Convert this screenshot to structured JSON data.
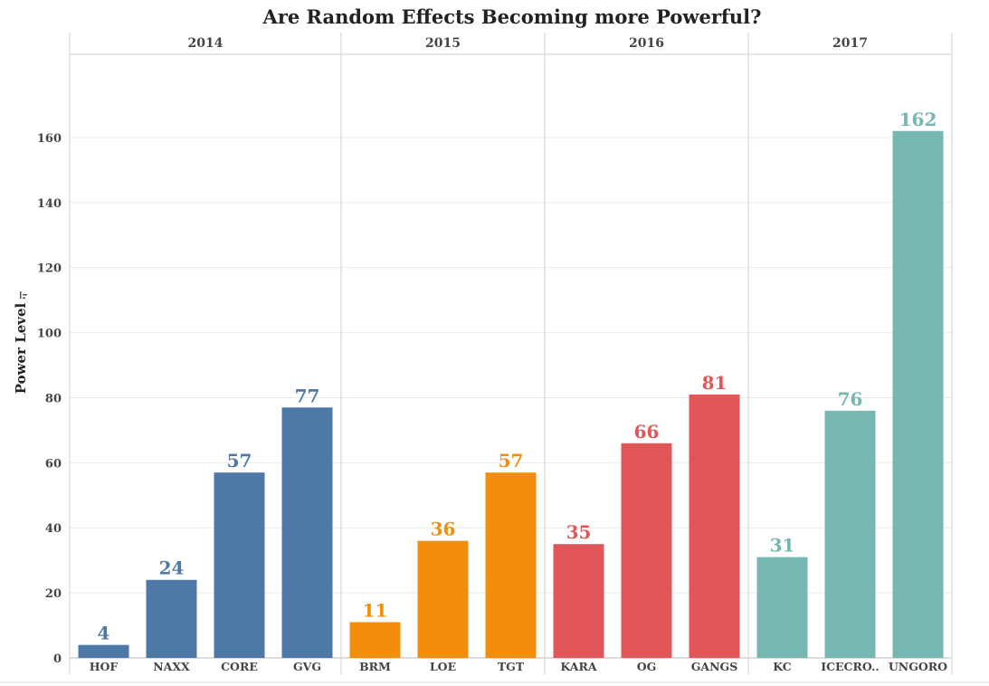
{
  "chart_data": {
    "type": "bar",
    "title": "Are Random Effects Becoming more Powerful?",
    "ylabel": "Power Level",
    "xlabel": "",
    "ylim": [
      0,
      170
    ],
    "yticks": [
      0,
      20,
      40,
      60,
      80,
      100,
      120,
      140,
      160
    ],
    "grid": true,
    "legend": "none",
    "panels": [
      {
        "name": "2014",
        "color": "#4e79a7",
        "categories": [
          "HOF",
          "NAXX",
          "CORE",
          "GVG"
        ],
        "values": [
          4,
          24,
          57,
          77
        ]
      },
      {
        "name": "2015",
        "color": "#f28e0c",
        "categories": [
          "BRM",
          "LOE",
          "TGT"
        ],
        "values": [
          11,
          36,
          57
        ]
      },
      {
        "name": "2016",
        "color": "#e15759",
        "categories": [
          "KARA",
          "OG",
          "GANGS"
        ],
        "values": [
          35,
          66,
          81
        ]
      },
      {
        "name": "2017",
        "color": "#76b7b2",
        "categories": [
          "KC",
          "ICECRO..",
          "UNGORO"
        ],
        "values": [
          31,
          76,
          162
        ]
      }
    ]
  }
}
